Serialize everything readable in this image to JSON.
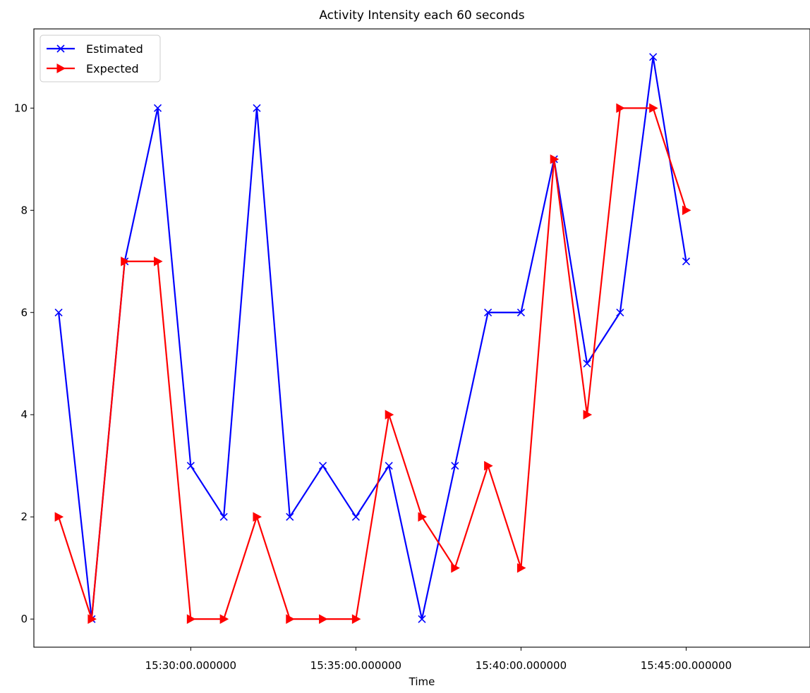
{
  "chart_data": {
    "type": "line",
    "title": "Activity Intensity each 60 seconds",
    "xlabel": "Time",
    "ylabel": "",
    "x_tick_labels": [
      "15:30:00.000000",
      "15:35:00.000000",
      "15:40:00.000000",
      "15:45:00.000000"
    ],
    "y_tick_labels": [
      "0",
      "2",
      "4",
      "6",
      "8",
      "10"
    ],
    "y_ticks": [
      0,
      2,
      4,
      6,
      8,
      10
    ],
    "x_ticks_minutes": [
      "15:30",
      "15:35",
      "15:40",
      "15:45"
    ],
    "xlim_time": [
      "15:25:15",
      "15:48:45"
    ],
    "ylim": [
      -0.55,
      11.55
    ],
    "x": [
      "15:26:00",
      "15:27:00",
      "15:28:00",
      "15:29:00",
      "15:30:00",
      "15:31:00",
      "15:32:00",
      "15:33:00",
      "15:34:00",
      "15:35:00",
      "15:36:00",
      "15:37:00",
      "15:38:00",
      "15:39:00",
      "15:40:00",
      "15:41:00",
      "15:42:00",
      "15:43:00",
      "15:44:00",
      "15:45:00",
      "15:46:00"
    ],
    "series": [
      {
        "name": "Estimated",
        "color": "#0000ff",
        "marker": "x",
        "values": [
          6,
          0,
          7,
          10,
          3,
          2,
          10,
          2,
          3,
          2,
          3,
          0,
          3,
          6,
          6,
          9,
          5,
          6,
          11,
          7,
          null
        ]
      },
      {
        "name": "Expected",
        "color": "#ff0000",
        "marker": "triangle-right",
        "values": [
          2,
          0,
          7,
          7,
          0,
          0,
          2,
          0,
          0,
          0,
          4,
          2,
          1,
          3,
          1,
          9,
          4,
          10,
          10,
          8,
          null
        ]
      }
    ],
    "legend_position": "top-left",
    "grid": false
  }
}
